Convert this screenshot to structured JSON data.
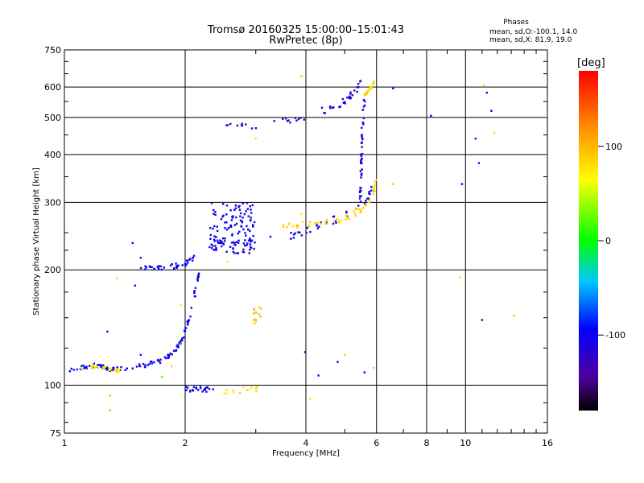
{
  "header": {
    "title": "Tromsø 20160325 15:00:00–15:01:43",
    "subtitle": "RwPretec (8p)",
    "phases_title": "Phases",
    "phases_o": "mean, sd,O:-100.1, 14.0",
    "phases_x": "mean, sd,X:  81.9, 19.0"
  },
  "colorbar": {
    "label": "[deg]",
    "ticks": [
      {
        "value": 100,
        "label": "100"
      },
      {
        "value": 0,
        "label": "0"
      },
      {
        "value": -100,
        "label": "-100"
      }
    ],
    "range": [
      -180,
      180
    ]
  },
  "chart_data": {
    "type": "scatter",
    "xscale": "log2",
    "yscale": "log",
    "xlim": [
      1,
      16
    ],
    "ylim": [
      75,
      750
    ],
    "xlabel": "Frequency [MHz]",
    "ylabel": "Stationary phase Virtual Height [km]",
    "xticks": [
      {
        "value": 1,
        "label": "1"
      },
      {
        "value": 2,
        "label": "2"
      },
      {
        "value": 4,
        "label": "4"
      },
      {
        "value": 6,
        "label": "6"
      },
      {
        "value": 8,
        "label": "8"
      },
      {
        "value": 10,
        "label": "10"
      },
      {
        "value": 16,
        "label": "16"
      }
    ],
    "yticks": [
      {
        "value": 75,
        "label": "75"
      },
      {
        "value": 100,
        "label": "100"
      },
      {
        "value": 200,
        "label": "200"
      },
      {
        "value": 300,
        "label": "300"
      },
      {
        "value": 400,
        "label": "400"
      },
      {
        "value": 500,
        "label": "500"
      },
      {
        "value": 600,
        "label": "600"
      },
      {
        "value": 750,
        "label": "750"
      }
    ],
    "grid": true,
    "series": [
      {
        "kind": "curve",
        "phase": -100,
        "spread": 0.012,
        "count": 120,
        "points": [
          [
            1.02,
            109
          ],
          [
            1.1,
            111
          ],
          [
            1.2,
            113
          ],
          [
            1.3,
            110
          ],
          [
            1.45,
            111
          ],
          [
            1.6,
            113
          ],
          [
            1.75,
            116
          ],
          [
            1.88,
            122
          ],
          [
            1.97,
            132
          ],
          [
            2.05,
            150
          ],
          [
            2.12,
            175
          ],
          [
            2.17,
            200
          ]
        ]
      },
      {
        "kind": "curve",
        "phase": -100,
        "spread": 0.015,
        "count": 40,
        "points": [
          [
            1.55,
            203
          ],
          [
            1.7,
            202
          ],
          [
            1.85,
            204
          ],
          [
            2.0,
            208
          ],
          [
            2.1,
            215
          ]
        ]
      },
      {
        "kind": "curve",
        "phase": 75,
        "spread": 0.01,
        "count": 25,
        "points": [
          [
            1.1,
            111
          ],
          [
            1.2,
            112
          ],
          [
            1.3,
            110
          ],
          [
            1.38,
            109
          ]
        ]
      },
      {
        "kind": "curve",
        "phase": -105,
        "spread": 0.025,
        "count": 60,
        "points": [
          [
            2.35,
            230
          ],
          [
            2.6,
            235
          ],
          [
            3.0,
            238
          ],
          [
            3.4,
            240
          ],
          [
            3.8,
            247
          ],
          [
            4.2,
            258
          ],
          [
            4.7,
            270
          ],
          [
            5.2,
            282
          ],
          [
            5.6,
            300
          ],
          [
            5.9,
            330
          ]
        ]
      },
      {
        "kind": "curve",
        "phase": 85,
        "spread": 0.02,
        "count": 60,
        "points": [
          [
            3.3,
            265
          ],
          [
            3.7,
            262
          ],
          [
            4.2,
            262
          ],
          [
            4.7,
            268
          ],
          [
            5.2,
            278
          ],
          [
            5.6,
            292
          ],
          [
            5.85,
            310
          ],
          [
            6.0,
            345
          ]
        ]
      },
      {
        "kind": "curve",
        "phase": -110,
        "spread": 0.02,
        "count": 50,
        "points": [
          [
            2.45,
            470
          ],
          [
            2.8,
            475
          ],
          [
            3.2,
            480
          ],
          [
            3.6,
            490
          ],
          [
            4.0,
            505
          ],
          [
            4.4,
            520
          ],
          [
            4.9,
            545
          ],
          [
            5.3,
            580
          ],
          [
            5.5,
            630
          ]
        ]
      },
      {
        "kind": "curve",
        "phase": -100,
        "spread": 0.02,
        "count": 45,
        "points": [
          [
            5.45,
            290
          ],
          [
            5.48,
            330
          ],
          [
            5.5,
            380
          ],
          [
            5.52,
            440
          ],
          [
            5.55,
            500
          ],
          [
            5.6,
            570
          ]
        ]
      },
      {
        "kind": "curve",
        "phase": 85,
        "spread": 0.01,
        "count": 20,
        "points": [
          [
            5.6,
            570
          ],
          [
            5.75,
            590
          ],
          [
            5.95,
            620
          ]
        ]
      },
      {
        "kind": "cloud",
        "phase": -105,
        "count": 120,
        "xrange": [
          2.3,
          3.0
        ],
        "yrange": [
          220,
          300
        ]
      },
      {
        "kind": "cloud",
        "phase": -100,
        "count": 22,
        "xrange": [
          2.0,
          2.35
        ],
        "yrange": [
          96,
          99
        ]
      },
      {
        "kind": "cloud",
        "phase": 80,
        "count": 14,
        "xrange": [
          2.5,
          3.2
        ],
        "yrange": [
          95,
          99
        ]
      },
      {
        "kind": "cloud",
        "phase": 95,
        "count": 12,
        "xrange": [
          2.95,
          3.1
        ],
        "yrange": [
          145,
          160
        ]
      },
      {
        "kind": "points",
        "phase": -100,
        "points": [
          [
            3.98,
            122
          ],
          [
            4.3,
            106
          ],
          [
            4.8,
            115
          ],
          [
            5.6,
            108
          ],
          [
            1.28,
            138
          ],
          [
            1.48,
            235
          ],
          [
            1.55,
            215
          ],
          [
            1.5,
            182
          ],
          [
            6.6,
            595
          ],
          [
            8.2,
            505
          ],
          [
            9.8,
            335
          ],
          [
            10.6,
            440
          ],
          [
            11.6,
            520
          ],
          [
            11.3,
            580
          ],
          [
            10.8,
            380
          ],
          [
            11.0,
            148
          ],
          [
            1.55,
            120
          ]
        ]
      },
      {
        "kind": "points",
        "phase": 85,
        "points": [
          [
            3.9,
            280
          ],
          [
            4.1,
            92
          ],
          [
            5.0,
            120
          ],
          [
            5.9,
            111
          ],
          [
            6.6,
            335
          ],
          [
            1.95,
            162
          ],
          [
            1.85,
            112
          ],
          [
            13.2,
            152
          ],
          [
            11.8,
            456
          ],
          [
            11.1,
            605
          ],
          [
            9.7,
            191
          ],
          [
            3.9,
            640
          ],
          [
            1.35,
            190
          ],
          [
            2.55,
            210
          ],
          [
            1.3,
            94
          ],
          [
            3.0,
            440
          ]
        ]
      },
      {
        "kind": "points",
        "phase": 20,
        "points": [
          [
            1.3,
            86
          ],
          [
            1.75,
            105
          ],
          [
            1.95,
            128
          ]
        ]
      }
    ]
  }
}
